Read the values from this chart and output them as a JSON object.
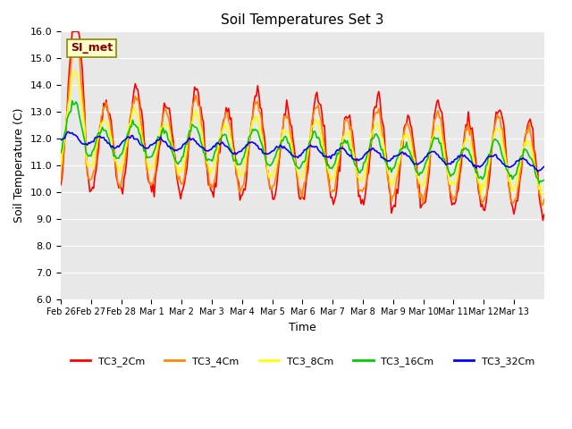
{
  "title": "Soil Temperatures Set 3",
  "xlabel": "Time",
  "ylabel": "Soil Temperature (C)",
  "ylim": [
    6.0,
    16.0
  ],
  "yticks": [
    6.0,
    7.0,
    8.0,
    9.0,
    10.0,
    11.0,
    12.0,
    13.0,
    14.0,
    15.0,
    16.0
  ],
  "colors": {
    "TC3_2Cm": "#ff0000",
    "TC3_4Cm": "#ff8800",
    "TC3_8Cm": "#ffff00",
    "TC3_16Cm": "#00cc00",
    "TC3_32Cm": "#0000ff"
  },
  "legend_label": "SI_met",
  "bg_color": "#e8e8e8",
  "plot_bg": "#e8e8e8",
  "x_tick_labels": [
    "Feb 26",
    "Feb 27",
    "Feb 28",
    "Mar 1",
    "Mar 2",
    "Mar 3",
    "Mar 4",
    "Mar 5",
    "Mar 6",
    "Mar 7",
    "Mar 8",
    "Mar 9",
    "Mar 10",
    "Mar 11",
    "Mar 12",
    "Mar 13"
  ],
  "n_points": 432
}
